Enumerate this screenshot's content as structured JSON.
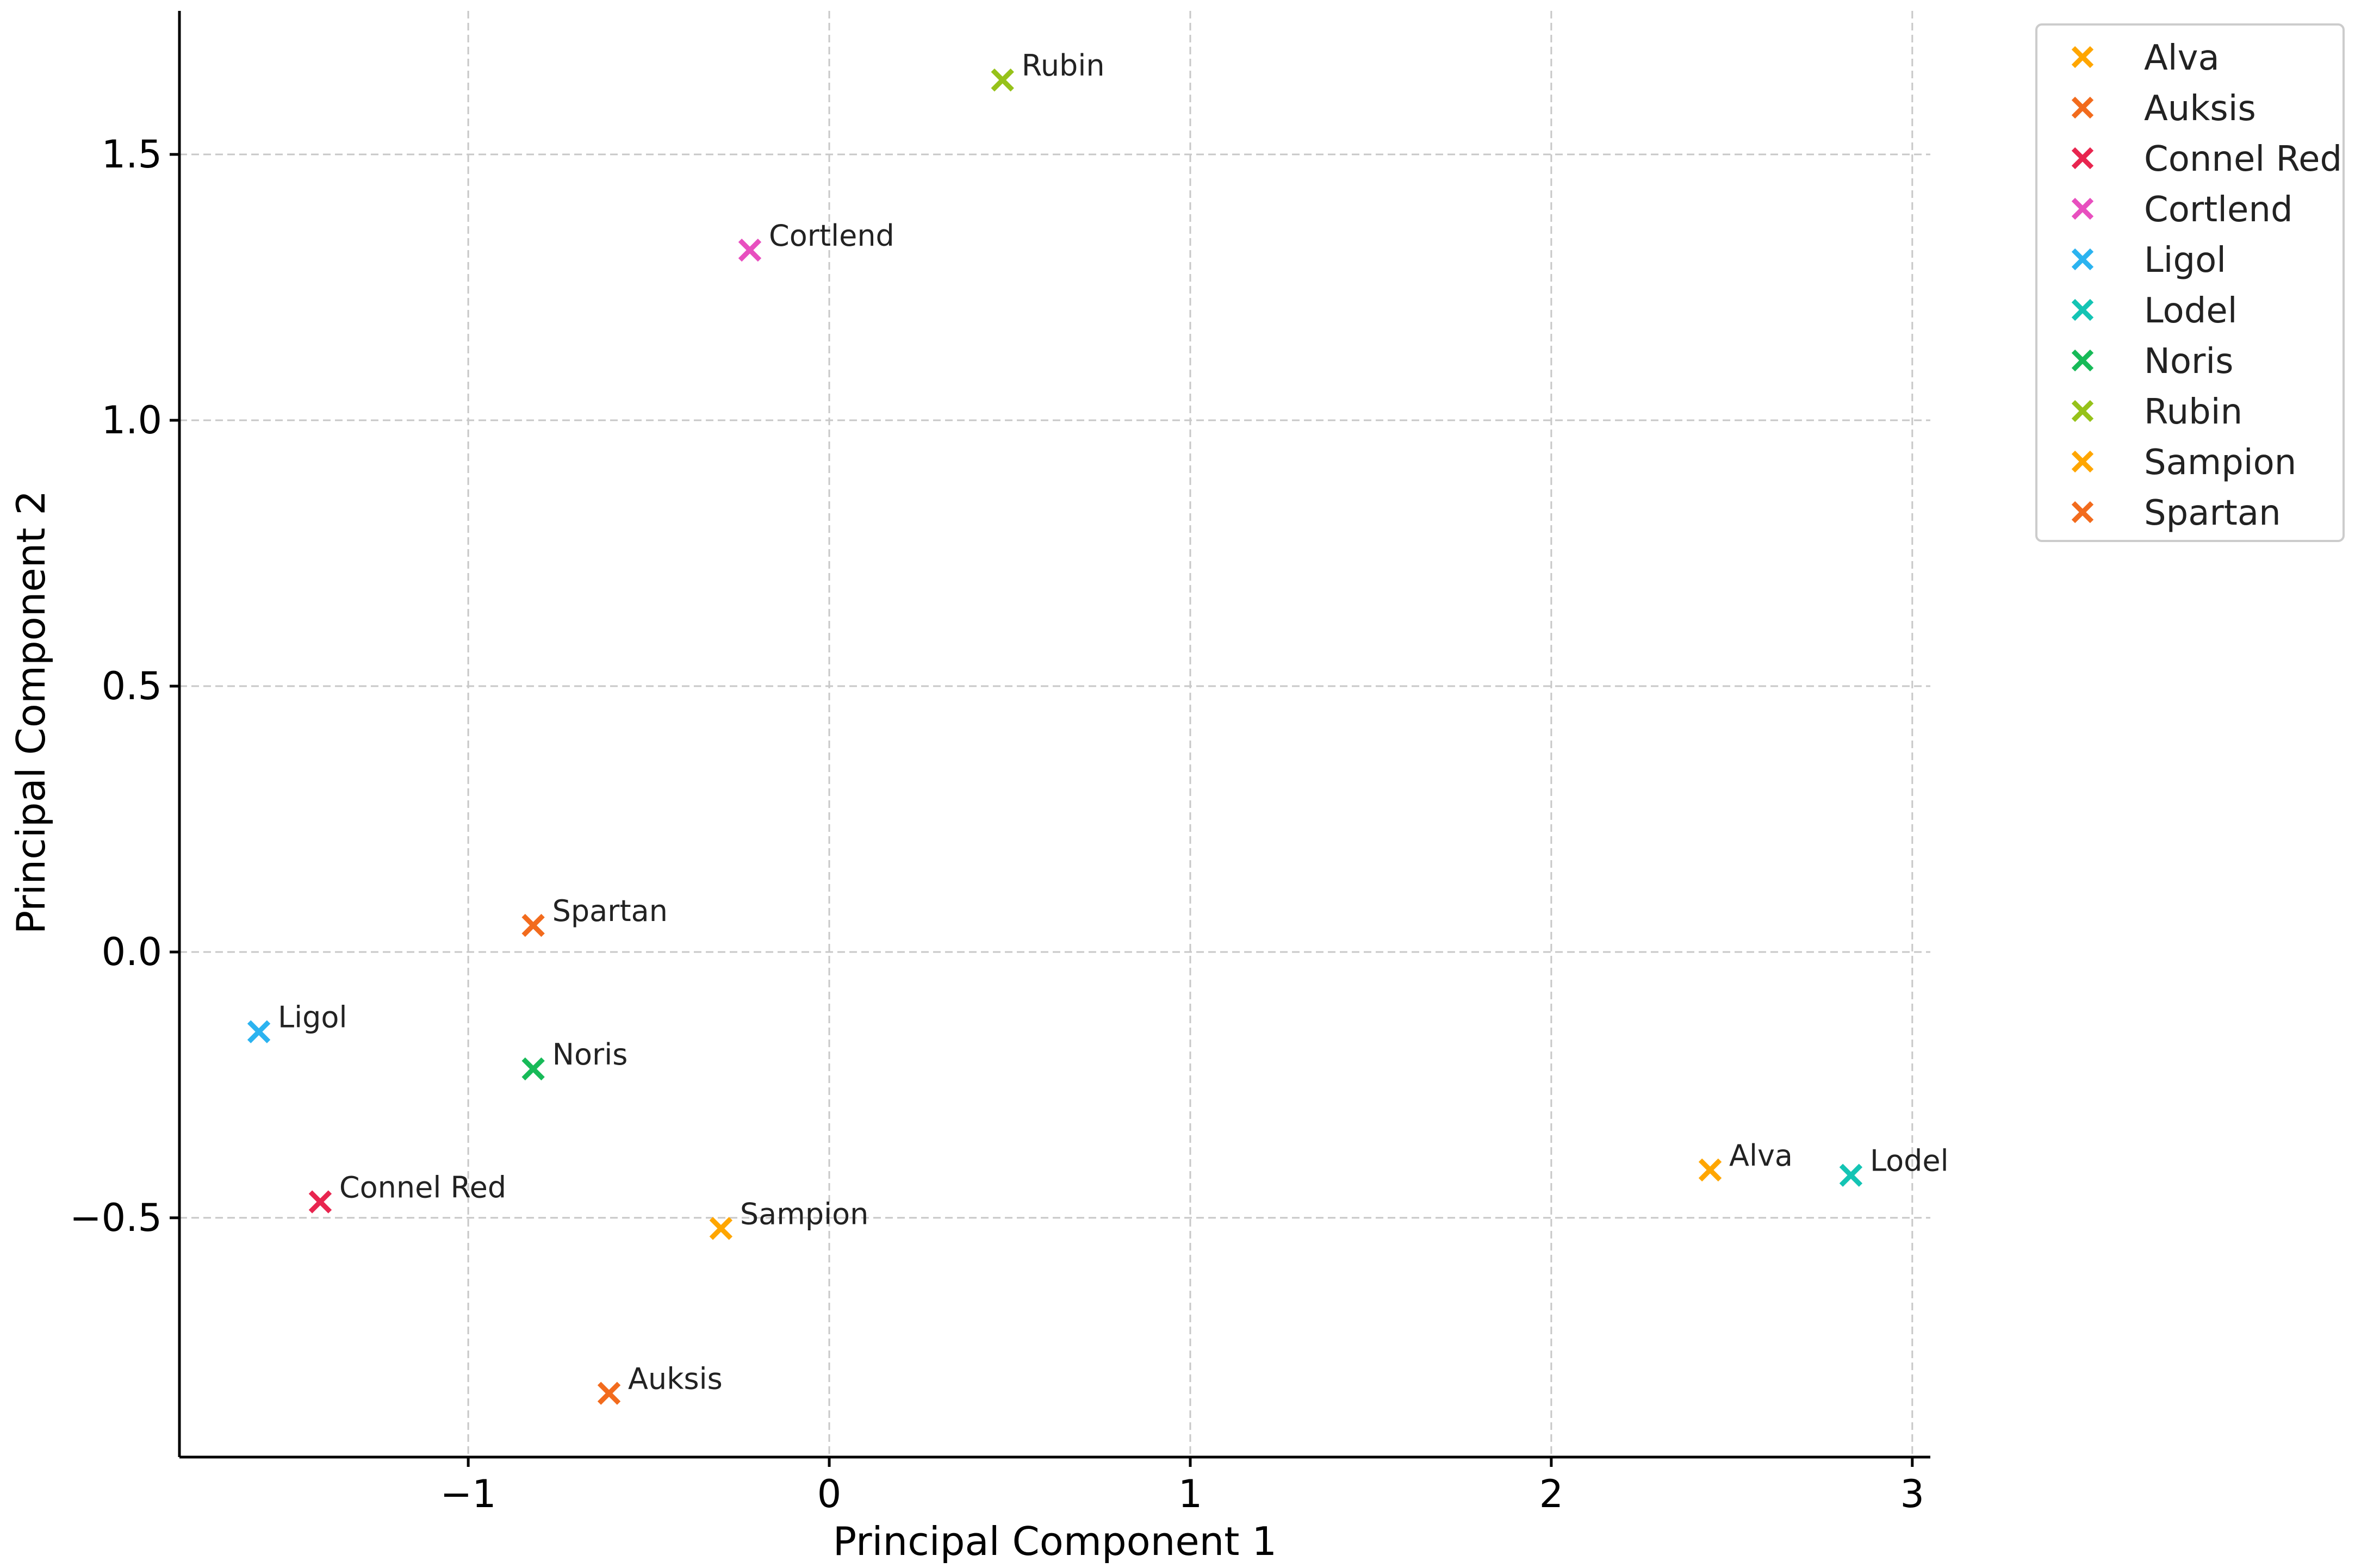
{
  "chart_data": {
    "type": "scatter",
    "title": "",
    "xlabel": "Principal Component 1",
    "ylabel": "Principal Component 2",
    "xlim": [
      -1.8,
      3.05
    ],
    "ylim": [
      -0.95,
      1.77
    ],
    "grid": true,
    "legend_position": "outside-top-right",
    "x_ticks": [
      {
        "value": -1,
        "label": "−1"
      },
      {
        "value": 0,
        "label": "0"
      },
      {
        "value": 1,
        "label": "1"
      },
      {
        "value": 2,
        "label": "2"
      },
      {
        "value": 3,
        "label": "3"
      }
    ],
    "y_ticks": [
      {
        "value": -0.5,
        "label": "−0.5"
      },
      {
        "value": 0.0,
        "label": "0.0"
      },
      {
        "value": 0.5,
        "label": "0.5"
      },
      {
        "value": 1.0,
        "label": "1.0"
      },
      {
        "value": 1.5,
        "label": "1.5"
      }
    ],
    "points": [
      {
        "name": "Alva",
        "x": 2.44,
        "y": -0.41,
        "color": "#ffa600"
      },
      {
        "name": "Auksis",
        "x": -0.61,
        "y": -0.83,
        "color": "#f26b1d"
      },
      {
        "name": "Connel Red",
        "x": -1.41,
        "y": -0.47,
        "color": "#e8254f"
      },
      {
        "name": "Cortlend",
        "x": -0.22,
        "y": 1.32,
        "color": "#e84fbf"
      },
      {
        "name": "Ligol",
        "x": -1.58,
        "y": -0.15,
        "color": "#2bb3f0"
      },
      {
        "name": "Lodel",
        "x": 2.83,
        "y": -0.42,
        "color": "#14c4b4"
      },
      {
        "name": "Noris",
        "x": -0.82,
        "y": -0.22,
        "color": "#17ba58"
      },
      {
        "name": "Rubin",
        "x": 0.48,
        "y": 1.64,
        "color": "#96c21a"
      },
      {
        "name": "Sampion",
        "x": -0.3,
        "y": -0.52,
        "color": "#ffa600"
      },
      {
        "name": "Spartan",
        "x": -0.82,
        "y": 0.05,
        "color": "#f26b1d"
      }
    ],
    "legend": [
      {
        "name": "Alva",
        "color": "#ffa600"
      },
      {
        "name": "Auksis",
        "color": "#f26b1d"
      },
      {
        "name": "Connel Red",
        "color": "#e8254f"
      },
      {
        "name": "Cortlend",
        "color": "#e84fbf"
      },
      {
        "name": "Ligol",
        "color": "#2bb3f0"
      },
      {
        "name": "Lodel",
        "color": "#14c4b4"
      },
      {
        "name": "Noris",
        "color": "#17ba58"
      },
      {
        "name": "Rubin",
        "color": "#96c21a"
      },
      {
        "name": "Sampion",
        "color": "#ffa600"
      },
      {
        "name": "Spartan",
        "color": "#f26b1d"
      }
    ]
  }
}
